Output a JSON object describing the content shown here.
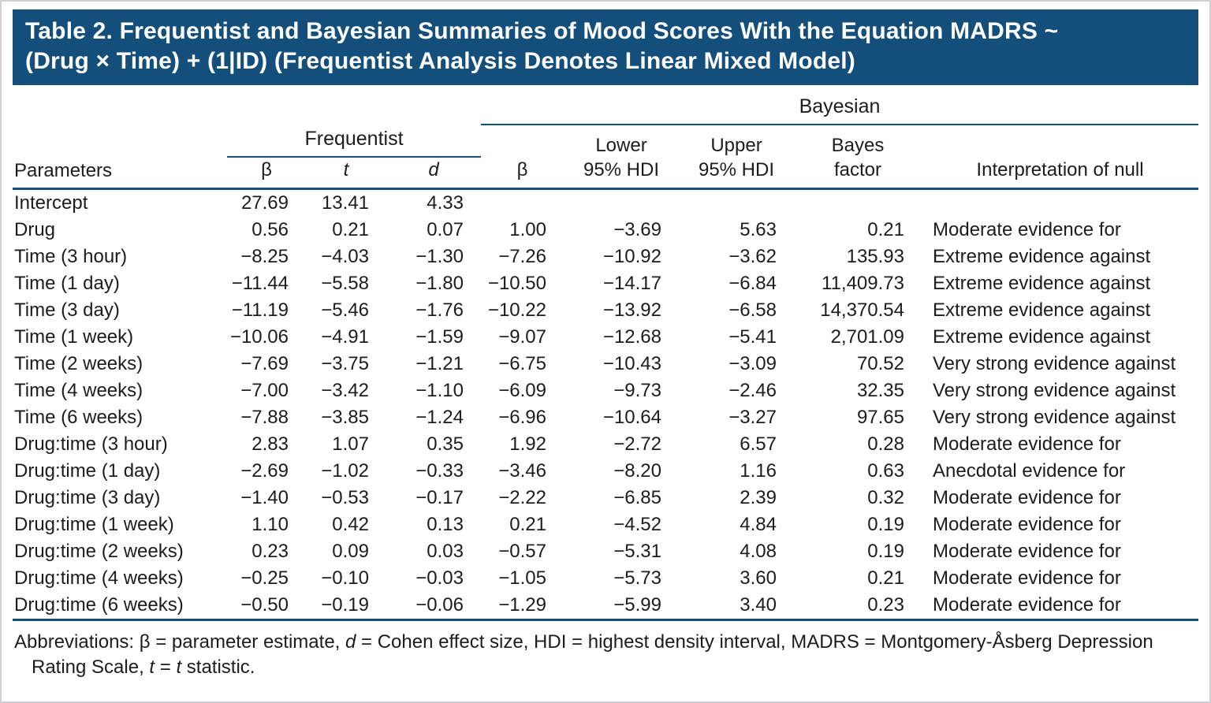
{
  "banner": {
    "title": "Table 2. Frequentist and Bayesian Summaries of Mood Scores With the Equation MADRS ~\n(Drug × Time) + (1|ID) (Frequentist Analysis Denotes Linear Mixed Model)"
  },
  "table": {
    "group_headers": {
      "frequentist": "Frequentist",
      "bayesian": "Bayesian"
    },
    "columns": [
      {
        "key": "parameter",
        "label": "Parameters",
        "align": "left"
      },
      {
        "key": "freq_beta",
        "label": "β",
        "align": "right"
      },
      {
        "key": "freq_t",
        "label": "t",
        "align": "right",
        "italic": true
      },
      {
        "key": "freq_d",
        "label": "d",
        "align": "right",
        "italic": true
      },
      {
        "key": "bayes_beta",
        "label": "β",
        "align": "right"
      },
      {
        "key": "lower_hdi",
        "label": "Lower\n95% HDI",
        "align": "right"
      },
      {
        "key": "upper_hdi",
        "label": "Upper\n95% HDI",
        "align": "right"
      },
      {
        "key": "bayes_factor",
        "label": "Bayes\nfactor",
        "align": "right"
      },
      {
        "key": "interpretation",
        "label": "Interpretation of null",
        "align": "left"
      }
    ],
    "rows": [
      [
        "Intercept",
        "27.69",
        "13.41",
        "4.33",
        "",
        "",
        "",
        "",
        ""
      ],
      [
        "Drug",
        "0.56",
        "0.21",
        "0.07",
        "1.00",
        "−3.69",
        "5.63",
        "0.21",
        "Moderate evidence for"
      ],
      [
        "Time (3 hour)",
        "−8.25",
        "−4.03",
        "−1.30",
        "−7.26",
        "−10.92",
        "−3.62",
        "135.93",
        "Extreme evidence against"
      ],
      [
        "Time (1 day)",
        "−11.44",
        "−5.58",
        "−1.80",
        "−10.50",
        "−14.17",
        "−6.84",
        "11,409.73",
        "Extreme evidence against"
      ],
      [
        "Time (3 day)",
        "−11.19",
        "−5.46",
        "−1.76",
        "−10.22",
        "−13.92",
        "−6.58",
        "14,370.54",
        "Extreme evidence against"
      ],
      [
        "Time (1 week)",
        "−10.06",
        "−4.91",
        "−1.59",
        "−9.07",
        "−12.68",
        "−5.41",
        "2,701.09",
        "Extreme evidence against"
      ],
      [
        "Time (2 weeks)",
        "−7.69",
        "−3.75",
        "−1.21",
        "−6.75",
        "−10.43",
        "−3.09",
        "70.52",
        "Very strong evidence against"
      ],
      [
        "Time (4 weeks)",
        "−7.00",
        "−3.42",
        "−1.10",
        "−6.09",
        "−9.73",
        "−2.46",
        "32.35",
        "Very strong evidence against"
      ],
      [
        "Time (6 weeks)",
        "−7.88",
        "−3.85",
        "−1.24",
        "−6.96",
        "−10.64",
        "−3.27",
        "97.65",
        "Very strong evidence against"
      ],
      [
        "Drug:time (3 hour)",
        "2.83",
        "1.07",
        "0.35",
        "1.92",
        "−2.72",
        "6.57",
        "0.28",
        "Moderate evidence for"
      ],
      [
        "Drug:time (1 day)",
        "−2.69",
        "−1.02",
        "−0.33",
        "−3.46",
        "−8.20",
        "1.16",
        "0.63",
        "Anecdotal evidence for"
      ],
      [
        "Drug:time (3 day)",
        "−1.40",
        "−0.53",
        "−0.17",
        "−2.22",
        "−6.85",
        "2.39",
        "0.32",
        "Moderate evidence for"
      ],
      [
        "Drug:time (1 week)",
        "1.10",
        "0.42",
        "0.13",
        "0.21",
        "−4.52",
        "4.84",
        "0.19",
        "Moderate evidence for"
      ],
      [
        "Drug:time (2 weeks)",
        "0.23",
        "0.09",
        "0.03",
        "−0.57",
        "−5.31",
        "4.08",
        "0.19",
        "Moderate evidence for"
      ],
      [
        "Drug:time (4 weeks)",
        "−0.25",
        "−0.10",
        "−0.03",
        "−1.05",
        "−5.73",
        "3.60",
        "0.21",
        "Moderate evidence for"
      ],
      [
        "Drug:time (6 weeks)",
        "−0.50",
        "−0.19",
        "−0.06",
        "−1.29",
        "−5.99",
        "3.40",
        "0.23",
        "Moderate evidence for"
      ]
    ]
  },
  "footnote": {
    "segments": [
      {
        "text": "Abbreviations: β = parameter estimate, ",
        "italic": false
      },
      {
        "text": "d",
        "italic": true
      },
      {
        "text": " = Cohen effect size, HDI = highest density interval, MADRS = Montgomery-Åsberg Depression Rating Scale, ",
        "italic": false
      },
      {
        "text": "t",
        "italic": true
      },
      {
        "text": " = ",
        "italic": false
      },
      {
        "text": "t",
        "italic": true
      },
      {
        "text": " statistic.",
        "italic": false
      }
    ]
  },
  "colors": {
    "banner_bg": "#144f7b",
    "rule": "#144f7b",
    "text": "#1c1c1c"
  }
}
